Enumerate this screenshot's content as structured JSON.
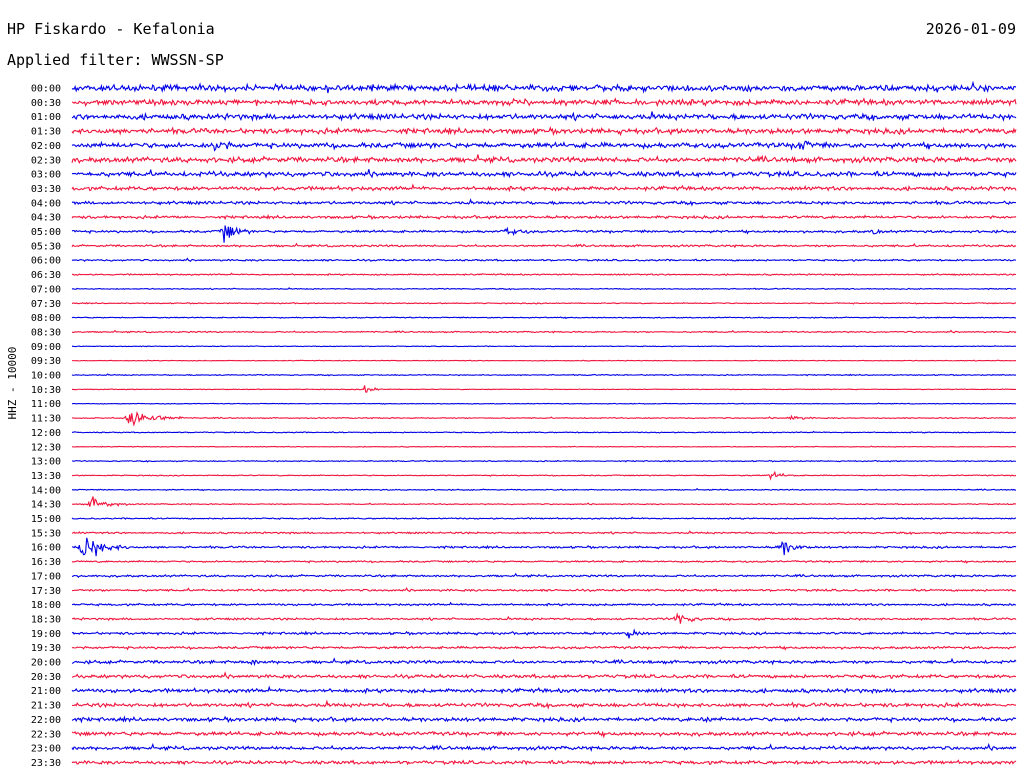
{
  "header": {
    "station": "HP Fiskardo - Kefalonia",
    "date": "2026-01-09",
    "filter_label": "Applied filter: WWSSN-SP"
  },
  "chart_data": {
    "type": "line",
    "channel_label": "HHZ - 10000",
    "row_labels": [
      "00:00",
      "00:30",
      "01:00",
      "01:30",
      "02:00",
      "02:30",
      "03:00",
      "03:30",
      "04:00",
      "04:30",
      "05:00",
      "05:30",
      "06:00",
      "06:30",
      "07:00",
      "07:30",
      "08:00",
      "08:30",
      "09:00",
      "09:30",
      "10:00",
      "10:30",
      "11:00",
      "11:30",
      "12:00",
      "12:30",
      "13:00",
      "13:30",
      "14:00",
      "14:30",
      "15:00",
      "15:30",
      "16:00",
      "16:30",
      "17:00",
      "17:30",
      "18:00",
      "18:30",
      "19:00",
      "19:30",
      "20:00",
      "20:30",
      "21:00",
      "21:30",
      "22:00",
      "22:30",
      "23:00",
      "23:30"
    ],
    "trace_colors": [
      "#0000e6",
      "#f0143c"
    ],
    "noise_level": [
      0.9,
      0.8,
      0.8,
      0.75,
      0.75,
      0.75,
      0.7,
      0.55,
      0.45,
      0.4,
      0.35,
      0.3,
      0.25,
      0.2,
      0.15,
      0.15,
      0.15,
      0.2,
      0.1,
      0.1,
      0.15,
      0.1,
      0.1,
      0.15,
      0.15,
      0.1,
      0.15,
      0.15,
      0.15,
      0.15,
      0.2,
      0.25,
      0.3,
      0.25,
      0.3,
      0.3,
      0.3,
      0.3,
      0.35,
      0.35,
      0.45,
      0.5,
      0.55,
      0.55,
      0.55,
      0.55,
      0.5,
      0.5
    ],
    "events": [
      {
        "row": 4,
        "pos": 0.15,
        "amp": 3.5,
        "dur": 0.02
      },
      {
        "row": 4,
        "pos": 0.77,
        "amp": 2.5,
        "dur": 0.02
      },
      {
        "row": 10,
        "pos": 0.16,
        "amp": 4,
        "dur": 0.03
      },
      {
        "row": 10,
        "pos": 0.46,
        "amp": 1.5,
        "dur": 0.03
      },
      {
        "row": 10,
        "pos": 0.85,
        "amp": 1.5,
        "dur": 0.01
      },
      {
        "row": 21,
        "pos": 0.31,
        "amp": 2.5,
        "dur": 0.02
      },
      {
        "row": 23,
        "pos": 0.06,
        "amp": 4,
        "dur": 0.06
      },
      {
        "row": 23,
        "pos": 0.76,
        "amp": 1,
        "dur": 0.03
      },
      {
        "row": 27,
        "pos": 0.74,
        "amp": 1.2,
        "dur": 0.03
      },
      {
        "row": 29,
        "pos": 0.02,
        "amp": 2.5,
        "dur": 0.04
      },
      {
        "row": 32,
        "pos": 0.01,
        "amp": 5,
        "dur": 0.05
      },
      {
        "row": 32,
        "pos": 0.75,
        "amp": 3.5,
        "dur": 0.03
      },
      {
        "row": 37,
        "pos": 0.64,
        "amp": 2.5,
        "dur": 0.03
      },
      {
        "row": 38,
        "pos": 0.59,
        "amp": 1.5,
        "dur": 0.02
      },
      {
        "row": 40,
        "pos": 0.19,
        "amp": 1.2,
        "dur": 0.01
      },
      {
        "row": 44,
        "pos": 0.67,
        "amp": 1.5,
        "dur": 0.01
      }
    ]
  }
}
